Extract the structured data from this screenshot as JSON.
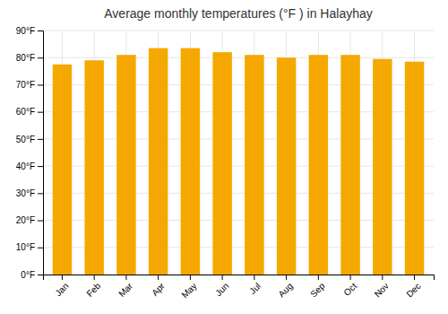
{
  "chart_data": {
    "type": "bar",
    "title": "Average monthly temperatures (°F ) in Halayhay",
    "categories": [
      "Jan",
      "Feb",
      "Mar",
      "Apr",
      "May",
      "Jun",
      "Jul",
      "Aug",
      "Sep",
      "Oct",
      "Nov",
      "Dec"
    ],
    "values": [
      77.5,
      79.0,
      81.0,
      83.5,
      83.5,
      82.0,
      81.0,
      80.0,
      81.0,
      81.0,
      79.5,
      78.5
    ],
    "color": "#F5A800",
    "ylim": [
      0,
      90
    ],
    "yticks": [
      {
        "value": 0,
        "label": "0°F"
      },
      {
        "value": 10,
        "label": "10°F"
      },
      {
        "value": 20,
        "label": "20°F"
      },
      {
        "value": 30,
        "label": "30°F"
      },
      {
        "value": 40,
        "label": "40°F"
      },
      {
        "value": 50,
        "label": "50°F"
      },
      {
        "value": 60,
        "label": "60°F"
      },
      {
        "value": 70,
        "label": "70°F"
      },
      {
        "value": 80,
        "label": "80°F"
      },
      {
        "value": 90,
        "label": "90°F"
      }
    ],
    "grid": true
  }
}
